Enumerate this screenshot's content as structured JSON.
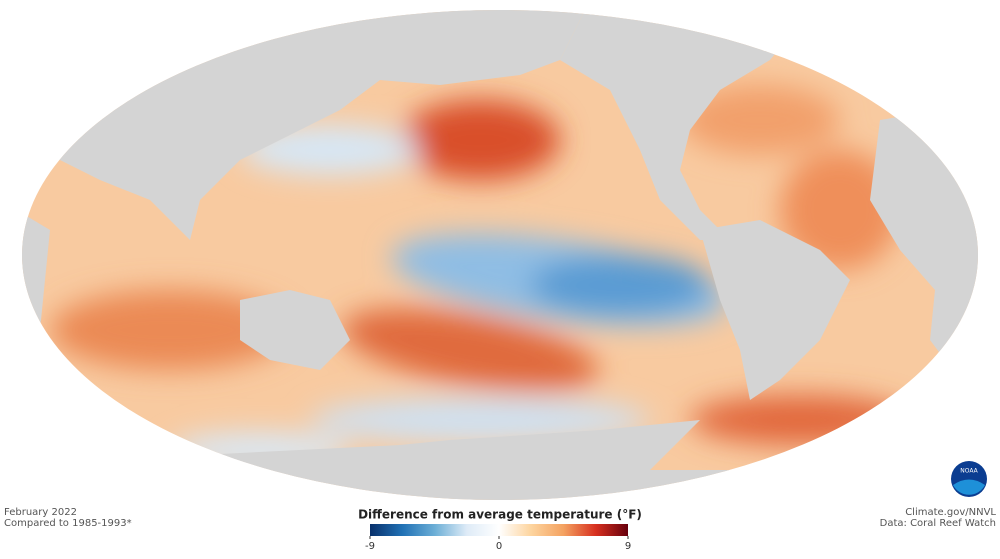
{
  "caption": {
    "date": "February 2022",
    "baseline": "Compared to 1985-1993*"
  },
  "credit": {
    "source": "Climate.gov/NNVL",
    "data": "Data: Coral Reef Watch"
  },
  "logo": {
    "text": "NOAA"
  },
  "colorbar": {
    "title": "Difference from average temperature (°F)",
    "lim": [
      -9,
      9
    ],
    "ticks": [
      -9,
      0,
      9
    ],
    "colors": [
      "#08306b",
      "#2171b5",
      "#6baed6",
      "#deebf7",
      "#ffffff",
      "#fdd49e",
      "#f4a261",
      "#d7301f",
      "#67000d"
    ]
  }
}
